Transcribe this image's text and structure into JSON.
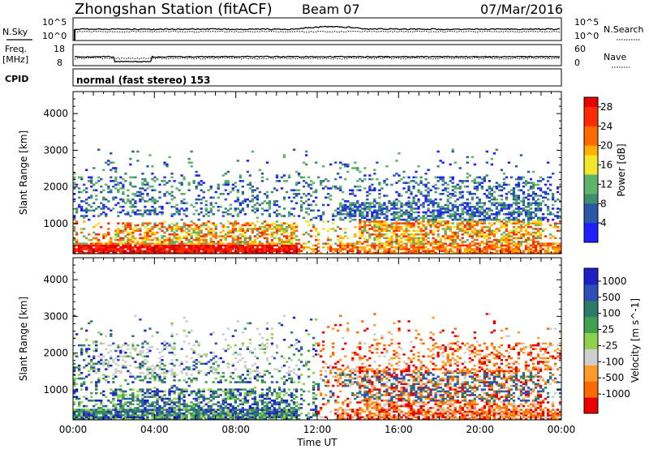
{
  "header": {
    "station": "Zhongshan Station (fitACF)",
    "beam": "Beam 07",
    "date": "07/Mar/2016"
  },
  "strips": {
    "nsky_label": "N.Sky",
    "nsky_ticks": [
      "10^5",
      "10^0"
    ],
    "nsearch_label": "N.Search",
    "nsearch_ticks": [
      "10^5",
      "10^0"
    ],
    "freq_label_1": "Freq.",
    "freq_label_2": "[MHz]",
    "freq_ticks": [
      "18",
      "8"
    ],
    "nave_label": "Nave",
    "nave_ticks": [
      "60",
      "0"
    ],
    "cpid_label": "CPID",
    "cpid_text": "normal (fast stereo) 153"
  },
  "colors": {
    "power": [
      "#1f1fff",
      "#2a57a8",
      "#3f8f6c",
      "#5fb36b",
      "#f2e62a",
      "#ffb000",
      "#ff6a00",
      "#ff2a00",
      "#e80000"
    ],
    "velocity": [
      "#e80000",
      "#ff6a00",
      "#ff9b2a",
      "#cfcfcf",
      "#8fd14f",
      "#3fa050",
      "#2e7a6a",
      "#2b4fb4",
      "#1f1fc9"
    ]
  },
  "chart_data": [
    {
      "type": "heatmap",
      "panel": "power",
      "xlabel": "",
      "ylabel": "Slant Range [km]",
      "yticks": [
        "1000",
        "2000",
        "3000",
        "4000"
      ],
      "ylim": [
        180,
        4600
      ],
      "colorbar_label": "Power [dB]",
      "colorbar_ticks": [
        "4",
        "8",
        "12",
        "16",
        "20",
        "24",
        "28"
      ],
      "colorbar_range": [
        0,
        30
      ]
    },
    {
      "type": "heatmap",
      "panel": "velocity",
      "xlabel": "Time UT",
      "xticks": [
        "00:00",
        "04:00",
        "08:00",
        "12:00",
        "16:00",
        "20:00",
        "00:00"
      ],
      "xlim_hours": [
        0,
        24
      ],
      "ylabel": "Slant Range [km]",
      "yticks": [
        "1000",
        "2000",
        "3000",
        "4000"
      ],
      "ylim": [
        180,
        4600
      ],
      "colorbar_label": "Velocity [m s^-1]",
      "colorbar_ticks": [
        "1000",
        "500",
        "100",
        "25",
        "-25",
        "-100",
        "-500",
        "-1000"
      ]
    }
  ]
}
